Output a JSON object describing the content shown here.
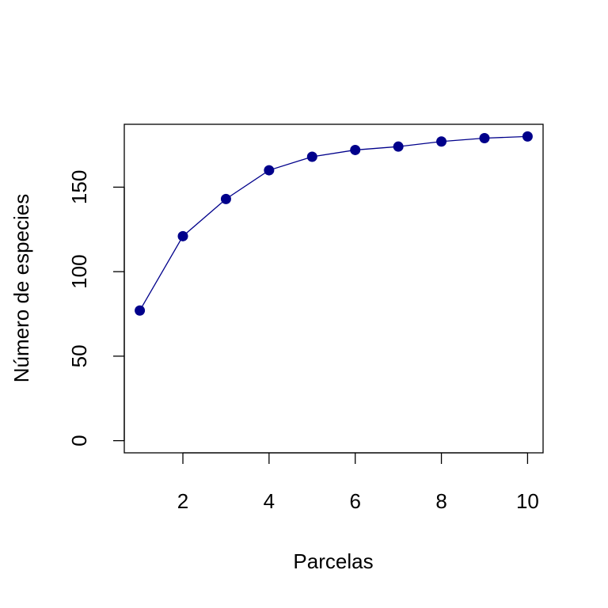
{
  "chart_data": {
    "type": "line",
    "title": "",
    "xlabel": "Parcelas",
    "ylabel": "Número de especies",
    "x": [
      1,
      2,
      3,
      4,
      5,
      6,
      7,
      8,
      9,
      10
    ],
    "series": [
      {
        "values": [
          77,
          121,
          143,
          160,
          168,
          172,
          174,
          177,
          179,
          180
        ],
        "color": "#00008B",
        "marker": "filled-circle",
        "line": "solid"
      }
    ],
    "x_ticks": [
      2,
      4,
      6,
      8,
      10
    ],
    "x_tick_labels": [
      "2",
      "4",
      "6",
      "8",
      "10"
    ],
    "y_ticks": [
      0,
      50,
      100,
      150
    ],
    "y_tick_labels": [
      "0",
      "50",
      "100",
      "150"
    ],
    "xlim": [
      0.64,
      10.36
    ],
    "ylim": [
      -7.2,
      187.2
    ],
    "grid": false,
    "legend": "none",
    "box": true
  }
}
